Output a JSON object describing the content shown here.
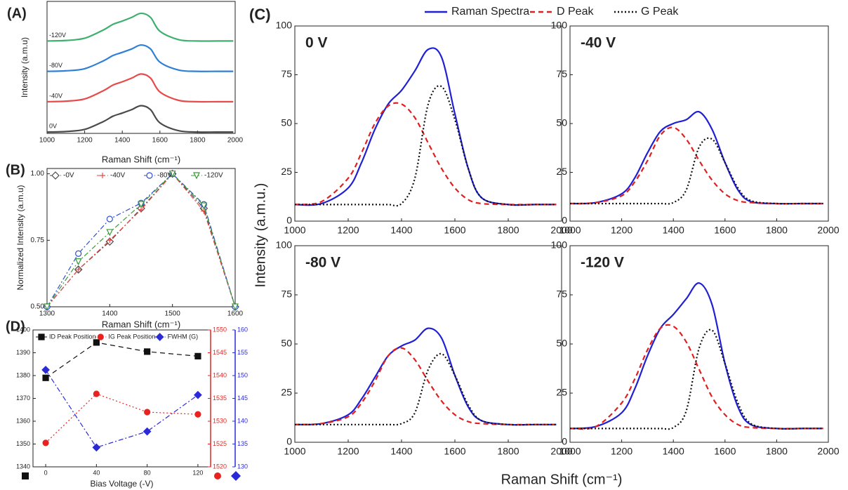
{
  "panel_c": {
    "label": "(C)",
    "xlabel": "Raman Shift (cm⁻¹)",
    "ylabel": "Intensity (a.m.u.)",
    "legend": "top"
  },
  "chart_data": [
    {
      "type": "line",
      "panel_label": "(A)",
      "xlabel": "Raman Shift (cm⁻¹)",
      "ylabel": "Intensity (a.m.u)",
      "x": [
        1000,
        1100,
        1200,
        1300,
        1350,
        1400,
        1450,
        1500,
        1550,
        1600,
        1700,
        1800,
        1900,
        1990
      ],
      "xlim": [
        1000,
        2000
      ],
      "xticks": [
        1000,
        1200,
        1400,
        1600,
        1800,
        2000
      ],
      "ylim": [
        0,
        100
      ],
      "smooth": true,
      "legend": "inline",
      "series": [
        {
          "name": "0V",
          "color": "#4a4a4a",
          "style": "solid",
          "values": [
            1,
            1.4,
            3,
            9,
            13,
            15.4,
            18,
            21,
            18,
            8,
            2,
            1,
            1,
            1
          ]
        },
        {
          "name": "-40V",
          "color": "#e84a4a",
          "style": "solid",
          "values": [
            24,
            24.4,
            26.1,
            32.4,
            36.6,
            39.1,
            41.9,
            45,
            41.9,
            31.4,
            25,
            24,
            24,
            24
          ]
        },
        {
          "name": "-80V",
          "color": "#2f7fd6",
          "style": "solid",
          "values": [
            47,
            47.4,
            49,
            55,
            59,
            61.4,
            64,
            67,
            64,
            54,
            48,
            47,
            47,
            47
          ]
        },
        {
          "name": "-120V",
          "color": "#3db06d",
          "style": "solid",
          "values": [
            70,
            70.4,
            72.1,
            78.4,
            82.6,
            85.1,
            87.9,
            91,
            87.9,
            77.4,
            71,
            70,
            70,
            70
          ]
        }
      ]
    },
    {
      "type": "line",
      "panel_label": "(B)",
      "xlabel": "Raman Shift (cm⁻¹)",
      "ylabel": "Normalized Intensity (a.m.u)",
      "x": [
        1300,
        1350,
        1400,
        1450,
        1500,
        1550,
        1600
      ],
      "xlim": [
        1300,
        1600
      ],
      "xticks": [
        1300,
        1400,
        1500,
        1600
      ],
      "ylim": [
        0.5,
        1.02
      ],
      "yticks": [
        {
          "value": 0.5,
          "label": "0.50"
        },
        {
          "value": 0.75,
          "label": "0.75"
        },
        {
          "value": 1,
          "label": "1.00"
        }
      ],
      "smooth": false,
      "legend": "top",
      "marker_filled": false,
      "series": [
        {
          "name": "-0V",
          "color": "#4a4a4a",
          "style": "dashdot",
          "marker": "diamond",
          "values": [
            0.5,
            0.64,
            0.745,
            0.87,
            1.0,
            0.87,
            0.5
          ]
        },
        {
          "name": "-40V",
          "color": "#e84a4a",
          "style": "dashdot",
          "marker": "plus",
          "values": [
            0.5,
            0.64,
            0.75,
            0.865,
            1.0,
            0.86,
            0.5
          ]
        },
        {
          "name": "-80V",
          "color": "#2f4fd6",
          "style": "dashdot",
          "marker": "circle",
          "values": [
            0.5,
            0.7,
            0.83,
            0.89,
            1.0,
            0.885,
            0.5
          ]
        },
        {
          "name": "-120V",
          "color": "#3a9a3a",
          "style": "dashdot",
          "marker": "triangle",
          "values": [
            0.5,
            0.67,
            0.78,
            0.885,
            1.0,
            0.88,
            0.5
          ]
        }
      ]
    },
    {
      "type": "line",
      "panel_label": "(D)",
      "xlabel": "Bias Voltage (-V)",
      "x": [
        0,
        40,
        80,
        120
      ],
      "xlim": [
        -10,
        130
      ],
      "xticks": [
        0,
        40,
        80,
        120
      ],
      "ylim": [
        1340,
        1400
      ],
      "yticks": [
        1340,
        1350,
        1360,
        1370,
        1380,
        1390,
        1400
      ],
      "y2lim": [
        1520,
        1550
      ],
      "y2ticks": [
        1520,
        1525,
        1530,
        1535,
        1540,
        1545,
        1550
      ],
      "y2color": "#e8231f",
      "y3lim": [
        130,
        160
      ],
      "y3ticks": [
        130,
        135,
        140,
        145,
        150,
        155,
        160
      ],
      "y3color": "#2a2ad8",
      "smooth": false,
      "legend": "top",
      "marker_filled": true,
      "series": [
        {
          "name": "ID Peak Position",
          "color": "#111111",
          "style": "dashed",
          "marker": "square",
          "values": [
            1379,
            1394.5,
            1390.5,
            1388.5
          ]
        },
        {
          "name": "IG Peak Position",
          "color": "#e8231f",
          "style": "dotted",
          "marker": "circle",
          "axis": "y2",
          "values": [
            1525.25,
            1536,
            1532,
            1531.5
          ]
        },
        {
          "name": "FWHM (G)",
          "color": "#2a2ad8",
          "style": "dashdot",
          "marker": "diamond",
          "axis": "y3",
          "values": [
            151.25,
            134.25,
            137.75,
            145.75
          ]
        }
      ]
    },
    {
      "type": "line",
      "title": "0 V",
      "x": [
        1000,
        1100,
        1200,
        1250,
        1300,
        1350,
        1400,
        1450,
        1500,
        1550,
        1600,
        1650,
        1700,
        1800,
        1900,
        1980
      ],
      "xlim": [
        1000,
        2000
      ],
      "xticks": [
        1000,
        1200,
        1400,
        1600,
        1800,
        2000
      ],
      "ylim": [
        0,
        100
      ],
      "yticks": [
        0,
        25,
        50,
        75,
        100
      ],
      "smooth": true,
      "series": [
        {
          "name": "Raman Spectra",
          "color": "#1f1fd6",
          "style": "solid",
          "values": [
            8.5,
            9,
            17,
            30,
            47,
            60,
            67,
            77,
            88,
            84,
            55,
            27,
            12,
            8.5,
            8.5,
            8.5
          ]
        },
        {
          "name": "D Peak",
          "color": "#e02020",
          "style": "dashed",
          "values": [
            8.5,
            10,
            22,
            35,
            50,
            59,
            60,
            53,
            40,
            27,
            17,
            11,
            9,
            8.5,
            8.5,
            8.5
          ]
        },
        {
          "name": "G Peak",
          "color": "#111111",
          "style": "dotted",
          "values": [
            8.5,
            8.5,
            8.5,
            8.5,
            8.5,
            8.5,
            9,
            22,
            60,
            69,
            52,
            27,
            12,
            8.5,
            8.5,
            8.5
          ]
        }
      ]
    },
    {
      "type": "line",
      "title": "-40 V",
      "x": [
        1000,
        1100,
        1200,
        1250,
        1300,
        1350,
        1400,
        1450,
        1500,
        1550,
        1600,
        1650,
        1700,
        1800,
        1900,
        1980
      ],
      "xlim": [
        1000,
        2000
      ],
      "xticks": [
        1000,
        1200,
        1400,
        1600,
        1800,
        2000
      ],
      "ylim": [
        0,
        100
      ],
      "yticks": [
        0,
        25,
        50,
        75,
        100
      ],
      "smooth": true,
      "series": [
        {
          "name": "Raman Spectra",
          "color": "#1f1fd6",
          "style": "solid",
          "values": [
            9,
            9.5,
            14,
            22,
            35,
            46,
            50,
            52,
            56,
            47,
            30,
            16,
            10,
            9,
            9,
            9
          ]
        },
        {
          "name": "D Peak",
          "color": "#e02020",
          "style": "dashed",
          "values": [
            9,
            9.5,
            13,
            20,
            31,
            44,
            48,
            42,
            31,
            21,
            14,
            10.5,
            9.5,
            9,
            9,
            9
          ]
        },
        {
          "name": "G Peak",
          "color": "#111111",
          "style": "dotted",
          "values": [
            9,
            9,
            9,
            9,
            9,
            9,
            9.5,
            16,
            38,
            42,
            30,
            17,
            10.5,
            9,
            9,
            9
          ]
        }
      ]
    },
    {
      "type": "line",
      "title": "-80 V",
      "x": [
        1000,
        1100,
        1200,
        1250,
        1300,
        1350,
        1400,
        1450,
        1500,
        1550,
        1600,
        1650,
        1700,
        1800,
        1900,
        1980
      ],
      "xlim": [
        1000,
        2000
      ],
      "xticks": [
        1000,
        1200,
        1400,
        1600,
        1800,
        2000
      ],
      "ylim": [
        0,
        100
      ],
      "yticks": [
        0,
        25,
        50,
        75,
        100
      ],
      "smooth": true,
      "series": [
        {
          "name": "Raman Spectra",
          "color": "#1f1fd6",
          "style": "solid",
          "values": [
            9,
            9.5,
            14,
            22,
            33,
            44,
            49,
            52,
            58,
            53,
            34,
            18,
            11,
            9,
            9,
            9
          ]
        },
        {
          "name": "D Peak",
          "color": "#e02020",
          "style": "dashed",
          "values": [
            9,
            9.5,
            13,
            20,
            31,
            44,
            48,
            42,
            31,
            21,
            14,
            10.5,
            9.5,
            9,
            9,
            9
          ]
        },
        {
          "name": "G Peak",
          "color": "#111111",
          "style": "dotted",
          "values": [
            9,
            9,
            9,
            9,
            9,
            9,
            9.5,
            15,
            37,
            45,
            34,
            19,
            11,
            9,
            9,
            9
          ]
        }
      ]
    },
    {
      "type": "line",
      "title": "-120 V",
      "x": [
        1000,
        1100,
        1200,
        1250,
        1300,
        1350,
        1400,
        1450,
        1500,
        1550,
        1600,
        1650,
        1700,
        1800,
        1900,
        1980
      ],
      "xlim": [
        1000,
        2000
      ],
      "xticks": [
        1000,
        1200,
        1400,
        1600,
        1800,
        2000
      ],
      "ylim": [
        0,
        100
      ],
      "yticks": [
        0,
        25,
        50,
        75,
        100
      ],
      "smooth": true,
      "series": [
        {
          "name": "Raman Spectra",
          "color": "#1f1fd6",
          "style": "solid",
          "values": [
            7,
            8,
            15,
            27,
            44,
            58,
            65,
            73,
            81,
            70,
            40,
            18,
            9,
            7,
            7,
            7
          ]
        },
        {
          "name": "D Peak",
          "color": "#e02020",
          "style": "dashed",
          "values": [
            7,
            8,
            20,
            32,
            47,
            58,
            59,
            51,
            37,
            23,
            14,
            9,
            7.5,
            7,
            7,
            7
          ]
        },
        {
          "name": "G Peak",
          "color": "#111111",
          "style": "dotted",
          "values": [
            7,
            7,
            7,
            7,
            7,
            7,
            7.5,
            16,
            48,
            57,
            40,
            20,
            9.5,
            7,
            7,
            7
          ]
        }
      ]
    }
  ]
}
